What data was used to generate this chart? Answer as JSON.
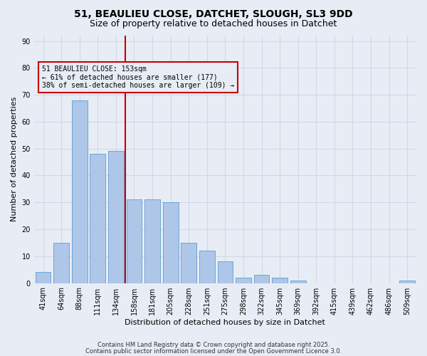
{
  "title_line1": "51, BEAULIEU CLOSE, DATCHET, SLOUGH, SL3 9DD",
  "title_line2": "Size of property relative to detached houses in Datchet",
  "xlabel": "Distribution of detached houses by size in Datchet",
  "ylabel": "Number of detached properties",
  "bar_labels": [
    "41sqm",
    "64sqm",
    "88sqm",
    "111sqm",
    "134sqm",
    "158sqm",
    "181sqm",
    "205sqm",
    "228sqm",
    "251sqm",
    "275sqm",
    "298sqm",
    "322sqm",
    "345sqm",
    "369sqm",
    "392sqm",
    "415sqm",
    "439sqm",
    "462sqm",
    "486sqm",
    "509sqm"
  ],
  "bar_values": [
    4,
    15,
    68,
    48,
    49,
    31,
    31,
    30,
    15,
    12,
    8,
    2,
    3,
    2,
    1,
    0,
    0,
    0,
    0,
    0,
    1
  ],
  "bar_color": "#aec6e8",
  "bar_edge_color": "#5a9fd4",
  "vline_index": 5,
  "vline_color": "#cc0000",
  "annotation_text": "51 BEAULIEU CLOSE: 153sqm\n← 61% of detached houses are smaller (177)\n38% of semi-detached houses are larger (109) →",
  "annotation_box_color": "#cc0000",
  "annotation_text_color": "#000000",
  "ylim": [
    0,
    92
  ],
  "yticks": [
    0,
    10,
    20,
    30,
    40,
    50,
    60,
    70,
    80,
    90
  ],
  "grid_color": "#d0d8e8",
  "background_color": "#e8edf5",
  "footer_line1": "Contains HM Land Registry data © Crown copyright and database right 2025.",
  "footer_line2": "Contains public sector information licensed under the Open Government Licence 3.0.",
  "title_fontsize": 10,
  "subtitle_fontsize": 9,
  "xlabel_fontsize": 8,
  "ylabel_fontsize": 8,
  "tick_fontsize": 7,
  "annotation_fontsize": 7,
  "footer_fontsize": 6
}
